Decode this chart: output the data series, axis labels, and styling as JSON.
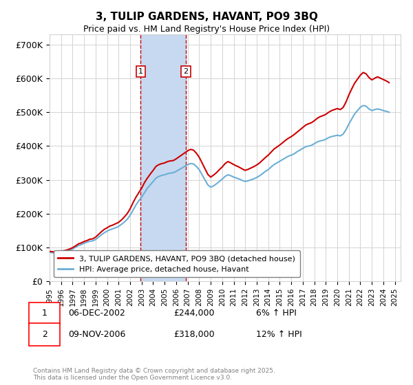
{
  "title": "3, TULIP GARDENS, HAVANT, PO9 3BQ",
  "subtitle": "Price paid vs. HM Land Registry's House Price Index (HPI)",
  "ylabel_ticks": [
    "£0",
    "£100K",
    "£200K",
    "£300K",
    "£400K",
    "£500K",
    "£600K",
    "£700K"
  ],
  "ytick_vals": [
    0,
    100000,
    200000,
    300000,
    400000,
    500000,
    600000,
    700000
  ],
  "ylim": [
    0,
    730000
  ],
  "hpi_color": "#6baed6",
  "price_color": "#cc0000",
  "shaded_color": "#c6d9f0",
  "legend_entries": [
    "3, TULIP GARDENS, HAVANT, PO9 3BQ (detached house)",
    "HPI: Average price, detached house, Havant"
  ],
  "transactions": [
    {
      "label": "1",
      "date": "06-DEC-2002",
      "price": 244000,
      "note": "6% ↑ HPI",
      "year": 2002.92
    },
    {
      "label": "2",
      "date": "09-NOV-2006",
      "price": 318000,
      "note": "12% ↑ HPI",
      "year": 2006.85
    }
  ],
  "footnote": "Contains HM Land Registry data © Crown copyright and database right 2025.\nThis data is licensed under the Open Government Licence v3.0.",
  "hpi_data": {
    "years": [
      1995.0,
      1995.25,
      1995.5,
      1995.75,
      1996.0,
      1996.25,
      1996.5,
      1996.75,
      1997.0,
      1997.25,
      1997.5,
      1997.75,
      1998.0,
      1998.25,
      1998.5,
      1998.75,
      1999.0,
      1999.25,
      1999.5,
      1999.75,
      2000.0,
      2000.25,
      2000.5,
      2000.75,
      2001.0,
      2001.25,
      2001.5,
      2001.75,
      2002.0,
      2002.25,
      2002.5,
      2002.75,
      2003.0,
      2003.25,
      2003.5,
      2003.75,
      2004.0,
      2004.25,
      2004.5,
      2004.75,
      2005.0,
      2005.25,
      2005.5,
      2005.75,
      2006.0,
      2006.25,
      2006.5,
      2006.75,
      2007.0,
      2007.25,
      2007.5,
      2007.75,
      2008.0,
      2008.25,
      2008.5,
      2008.75,
      2009.0,
      2009.25,
      2009.5,
      2009.75,
      2010.0,
      2010.25,
      2010.5,
      2010.75,
      2011.0,
      2011.25,
      2011.5,
      2011.75,
      2012.0,
      2012.25,
      2012.5,
      2012.75,
      2013.0,
      2013.25,
      2013.5,
      2013.75,
      2014.0,
      2014.25,
      2014.5,
      2014.75,
      2015.0,
      2015.25,
      2015.5,
      2015.75,
      2016.0,
      2016.25,
      2016.5,
      2016.75,
      2017.0,
      2017.25,
      2017.5,
      2017.75,
      2018.0,
      2018.25,
      2018.5,
      2018.75,
      2019.0,
      2019.25,
      2019.5,
      2019.75,
      2020.0,
      2020.25,
      2020.5,
      2020.75,
      2021.0,
      2021.25,
      2021.5,
      2021.75,
      2022.0,
      2022.25,
      2022.5,
      2022.75,
      2023.0,
      2023.25,
      2023.5,
      2023.75,
      2024.0,
      2024.25,
      2024.5
    ],
    "values": [
      85000,
      84000,
      83000,
      83500,
      85000,
      87000,
      89000,
      91000,
      95000,
      100000,
      105000,
      108000,
      112000,
      115000,
      118000,
      119000,
      123000,
      130000,
      137000,
      143000,
      148000,
      152000,
      155000,
      158000,
      162000,
      168000,
      175000,
      183000,
      195000,
      210000,
      225000,
      238000,
      248000,
      262000,
      275000,
      285000,
      295000,
      305000,
      310000,
      313000,
      315000,
      318000,
      320000,
      321000,
      325000,
      330000,
      335000,
      340000,
      345000,
      348000,
      347000,
      340000,
      330000,
      315000,
      300000,
      285000,
      278000,
      282000,
      288000,
      295000,
      302000,
      310000,
      315000,
      312000,
      308000,
      305000,
      302000,
      298000,
      295000,
      297000,
      300000,
      303000,
      307000,
      312000,
      318000,
      325000,
      330000,
      338000,
      345000,
      350000,
      355000,
      360000,
      365000,
      370000,
      373000,
      377000,
      383000,
      388000,
      393000,
      398000,
      400000,
      402000,
      407000,
      412000,
      415000,
      417000,
      420000,
      425000,
      428000,
      430000,
      432000,
      430000,
      435000,
      448000,
      465000,
      480000,
      495000,
      505000,
      515000,
      520000,
      518000,
      510000,
      505000,
      508000,
      510000,
      508000,
      505000,
      503000,
      500000
    ]
  },
  "price_data": {
    "years": [
      1995.0,
      1995.25,
      1995.5,
      1995.75,
      1996.0,
      1996.25,
      1996.5,
      1996.75,
      1997.0,
      1997.25,
      1997.5,
      1997.75,
      1998.0,
      1998.25,
      1998.5,
      1998.75,
      1999.0,
      1999.25,
      1999.5,
      1999.75,
      2000.0,
      2000.25,
      2000.5,
      2000.75,
      2001.0,
      2001.25,
      2001.5,
      2001.75,
      2002.0,
      2002.25,
      2002.5,
      2002.75,
      2003.0,
      2003.25,
      2003.5,
      2003.75,
      2004.0,
      2004.25,
      2004.5,
      2004.75,
      2005.0,
      2005.25,
      2005.5,
      2005.75,
      2006.0,
      2006.25,
      2006.5,
      2006.75,
      2007.0,
      2007.25,
      2007.5,
      2007.75,
      2008.0,
      2008.25,
      2008.5,
      2008.75,
      2009.0,
      2009.25,
      2009.5,
      2009.75,
      2010.0,
      2010.25,
      2010.5,
      2010.75,
      2011.0,
      2011.25,
      2011.5,
      2011.75,
      2012.0,
      2012.25,
      2012.5,
      2012.75,
      2013.0,
      2013.25,
      2013.5,
      2013.75,
      2014.0,
      2014.25,
      2014.5,
      2014.75,
      2015.0,
      2015.25,
      2015.5,
      2015.75,
      2016.0,
      2016.25,
      2016.5,
      2016.75,
      2017.0,
      2017.25,
      2017.5,
      2017.75,
      2018.0,
      2018.25,
      2018.5,
      2018.75,
      2019.0,
      2019.25,
      2019.5,
      2019.75,
      2020.0,
      2020.25,
      2020.5,
      2020.75,
      2021.0,
      2021.25,
      2021.5,
      2021.75,
      2022.0,
      2022.25,
      2022.5,
      2022.75,
      2023.0,
      2023.25,
      2023.5,
      2023.75,
      2024.0,
      2024.25,
      2024.5
    ],
    "values": [
      88000,
      87000,
      86000,
      86500,
      88000,
      90000,
      92000,
      95000,
      99000,
      104000,
      110000,
      113000,
      117000,
      120000,
      124000,
      125000,
      130000,
      138000,
      146000,
      153000,
      158000,
      163000,
      166000,
      170000,
      174000,
      181000,
      190000,
      200000,
      214000,
      232000,
      248000,
      262000,
      275000,
      292000,
      305000,
      317000,
      328000,
      340000,
      345000,
      348000,
      350000,
      354000,
      356000,
      357000,
      362000,
      368000,
      374000,
      380000,
      386000,
      390000,
      388000,
      379000,
      367000,
      350000,
      333000,
      316000,
      308000,
      314000,
      321000,
      330000,
      338000,
      348000,
      354000,
      350000,
      345000,
      341000,
      337000,
      332000,
      328000,
      331000,
      335000,
      339000,
      344000,
      350000,
      358000,
      366000,
      373000,
      382000,
      391000,
      397000,
      403000,
      410000,
      417000,
      423000,
      428000,
      434000,
      441000,
      448000,
      455000,
      462000,
      466000,
      469000,
      475000,
      482000,
      487000,
      490000,
      494000,
      500000,
      505000,
      508000,
      511000,
      508000,
      514000,
      530000,
      551000,
      569000,
      586000,
      598000,
      610000,
      618000,
      614000,
      603000,
      596000,
      601000,
      605000,
      601000,
      597000,
      593000,
      588000
    ]
  }
}
